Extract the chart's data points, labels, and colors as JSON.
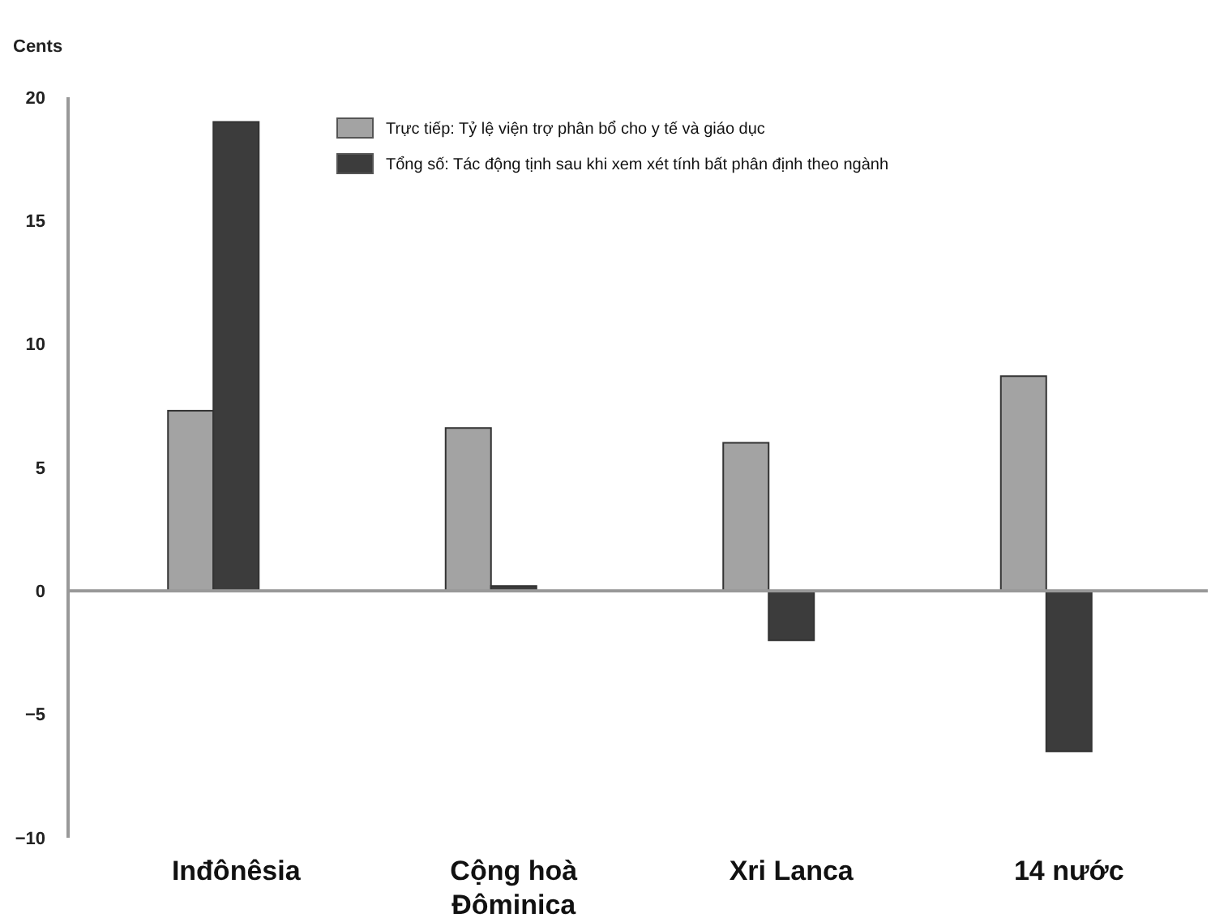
{
  "chart_data": {
    "type": "bar",
    "ylabel": "Cents",
    "categories": [
      "Inđônêsia",
      "Cộng hoà Đôminica",
      "Xri Lanca",
      "14 nước"
    ],
    "series": [
      {
        "name": "Trực tiếp: Tỷ lệ viện trợ phân bổ cho y tế và giáo dục",
        "color": "#a3a3a3",
        "values": [
          7.3,
          6.6,
          6.0,
          8.7
        ]
      },
      {
        "name": "Tổng số: Tác động tịnh sau khi xem xét tính bất phân định theo ngành",
        "color": "#3c3c3c",
        "values": [
          19.0,
          0.2,
          -2.0,
          -6.5
        ]
      }
    ],
    "ylim": [
      -10,
      20
    ],
    "yticks": [
      -10,
      -5,
      0,
      5,
      10,
      15,
      20
    ],
    "legend": "top"
  }
}
